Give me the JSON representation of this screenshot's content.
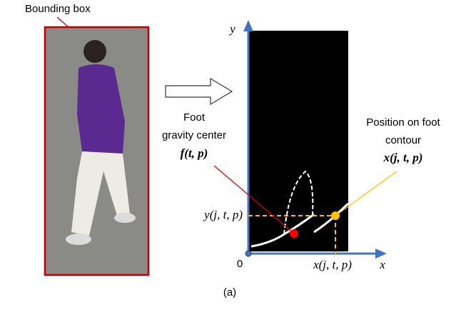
{
  "bounding_box_label": "Bounding box",
  "foot_center": {
    "lines": [
      "Foot",
      "gravity center"
    ],
    "symbol": "f(t, p)"
  },
  "contour_point": {
    "lines": [
      "Position on foot",
      "contour"
    ],
    "symbol": "x(j, t, p)"
  },
  "axes": {
    "y_label": "y",
    "x_label": "x",
    "origin": "0",
    "y_tick": "y(j, t, p)",
    "x_tick": "x(j, t, p)"
  },
  "caption": "(a)"
}
